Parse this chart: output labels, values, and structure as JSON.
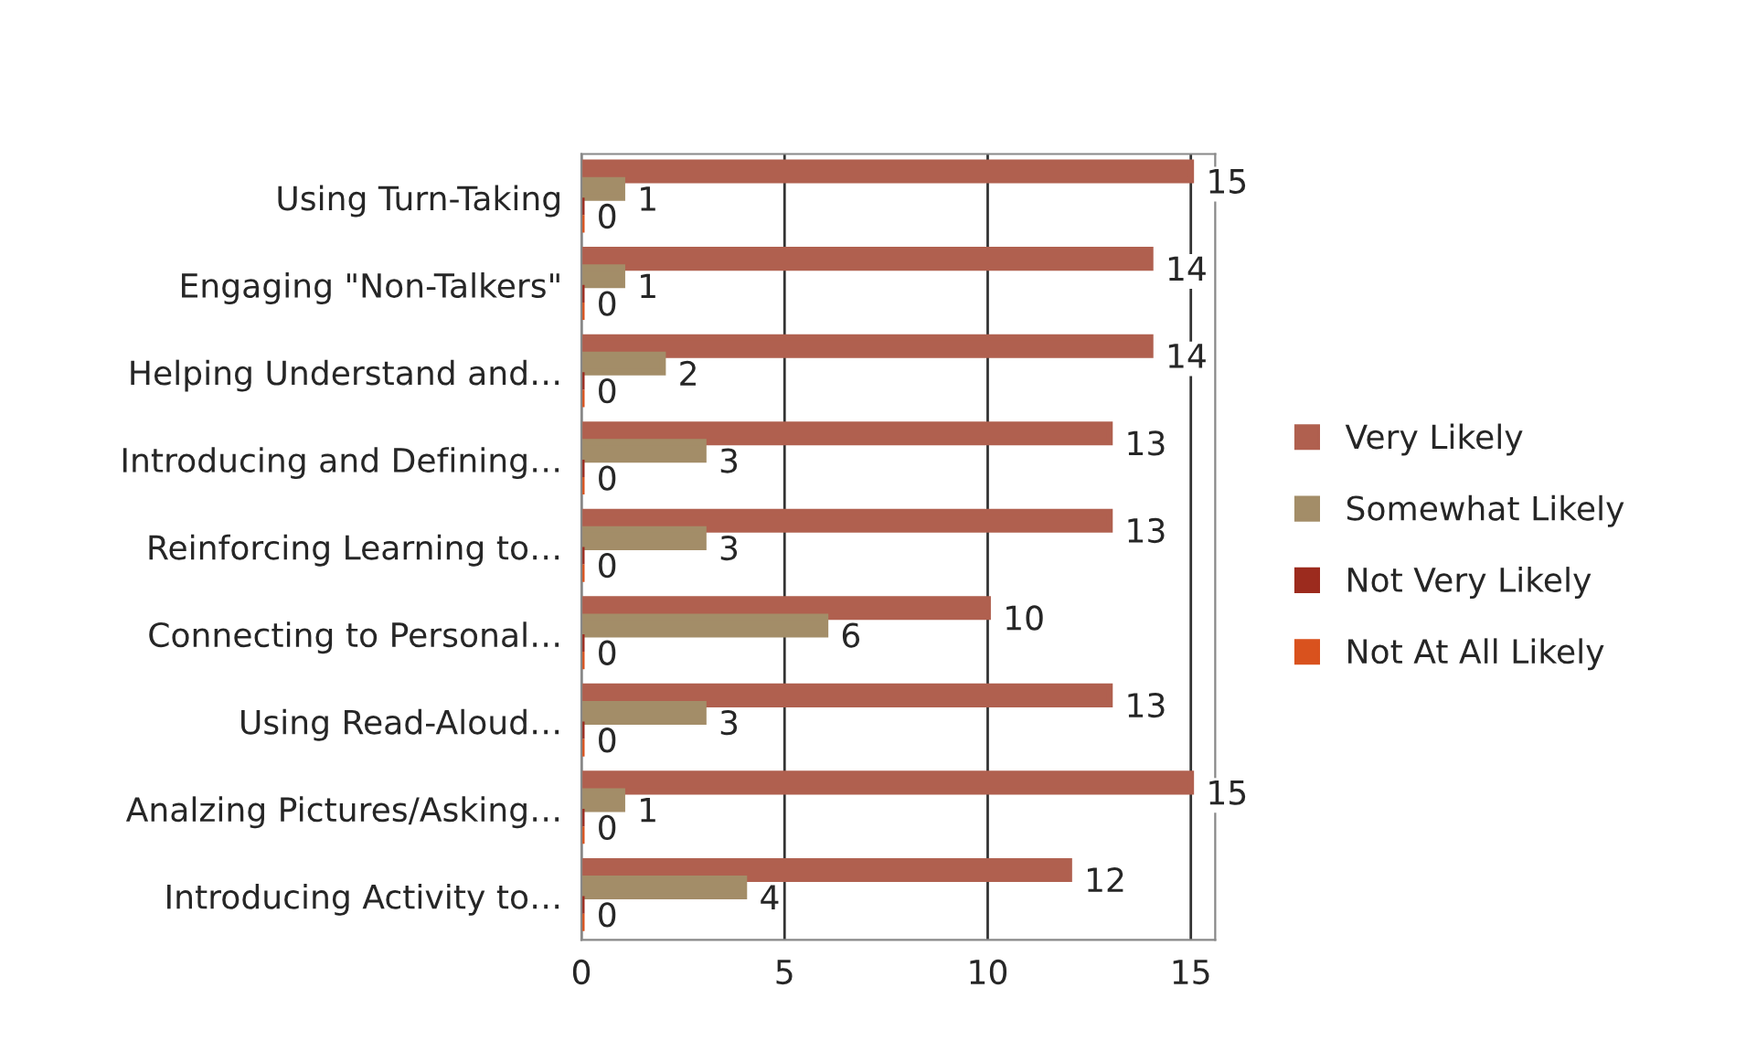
{
  "chart_data": {
    "type": "bar",
    "orientation": "horizontal",
    "categories": [
      "Using Turn-Taking",
      "Engaging \"Non-Talkers\"",
      "Helping Understand and…",
      "Introducing and Defining…",
      "Reinforcing Learning to…",
      "Connecting to Personal…",
      "Using Read-Aloud…",
      "Analzing Pictures/Asking…",
      "Introducing Activity to…"
    ],
    "series": [
      {
        "name": "Very Likely",
        "color": "#b0604f",
        "values": [
          15,
          14,
          14,
          13,
          13,
          10,
          13,
          15,
          12
        ],
        "value_labels": [
          "15",
          "14",
          "14",
          "13",
          "13",
          "10",
          "13",
          "15",
          "12"
        ]
      },
      {
        "name": "Somewhat Likely",
        "color": "#a38d68",
        "values": [
          1,
          1,
          2,
          3,
          3,
          6,
          3,
          1,
          4
        ],
        "value_labels": [
          "1",
          "1",
          "2",
          "3",
          "3",
          "6",
          "3",
          "1",
          "4"
        ]
      },
      {
        "name": "Not Very Likely",
        "color": "#9c2b1e",
        "values": [
          0,
          0,
          0,
          0,
          0,
          0,
          0,
          0,
          0
        ],
        "value_labels": [
          "0",
          "0",
          "0",
          "0",
          "0",
          "0",
          "0",
          "0",
          "0"
        ]
      },
      {
        "name": "Not At All Likely",
        "color": "#d9521e",
        "values": [
          0,
          0,
          0,
          0,
          0,
          0,
          0,
          0,
          0
        ],
        "value_labels": [
          null,
          null,
          null,
          null,
          null,
          null,
          null,
          null,
          null
        ]
      }
    ],
    "xlim": [
      0,
      15.6
    ],
    "xticks": [
      0,
      5,
      10,
      15
    ],
    "grid": "x",
    "legend": "right"
  }
}
